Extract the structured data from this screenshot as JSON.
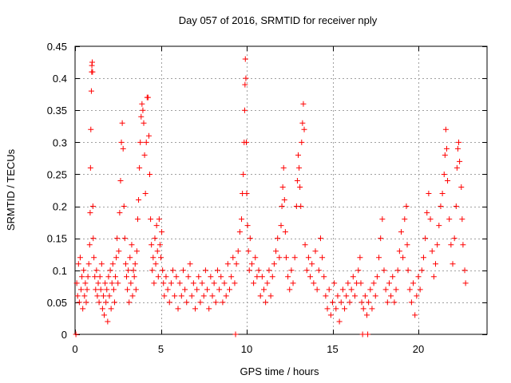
{
  "chart_data": {
    "type": "scatter",
    "title": "Day 057 of 2016, SRMTID for receiver nply",
    "xlabel": "GPS time / hours",
    "ylabel": "SRMTID / TECUs",
    "xlim": [
      0,
      24
    ],
    "ylim": [
      0,
      0.45
    ],
    "xticks": [
      "0",
      "5",
      "10",
      "15",
      "20"
    ],
    "xtick_values": [
      0,
      5,
      10,
      15,
      20
    ],
    "yticks": [
      "0",
      "0.05",
      "0.1",
      "0.15",
      "0.2",
      "0.25",
      "0.3",
      "0.35",
      "0.4",
      "0.45"
    ],
    "ytick_values": [
      0,
      0.05,
      0.1,
      0.15,
      0.2,
      0.25,
      0.3,
      0.35,
      0.4,
      0.45
    ],
    "grid": true,
    "legend": "none",
    "marker": "plus",
    "color": "#ff0000",
    "series": [
      {
        "points": [
          [
            0.05,
            0.0
          ],
          [
            0.1,
            0.08
          ],
          [
            0.15,
            0.06
          ],
          [
            0.2,
            0.11
          ],
          [
            0.25,
            0.05
          ],
          [
            0.3,
            0.12
          ],
          [
            0.35,
            0.07
          ],
          [
            0.4,
            0.09
          ],
          [
            0.45,
            0.04
          ],
          [
            0.5,
            0.1
          ],
          [
            0.55,
            0.06
          ],
          [
            0.6,
            0.08
          ],
          [
            0.65,
            0.05
          ],
          [
            0.7,
            0.07
          ],
          [
            0.75,
            0.09
          ],
          [
            0.8,
            0.11
          ],
          [
            0.85,
            0.14
          ],
          [
            0.88,
            0.19
          ],
          [
            0.9,
            0.26
          ],
          [
            0.92,
            0.32
          ],
          [
            0.95,
            0.38
          ],
          [
            0.97,
            0.41
          ],
          [
            0.98,
            0.42
          ],
          [
            1.0,
            0.425
          ],
          [
            1.02,
            0.41
          ],
          [
            1.04,
            0.2
          ],
          [
            1.06,
            0.15
          ],
          [
            1.1,
            0.12
          ],
          [
            1.15,
            0.09
          ],
          [
            1.2,
            0.07
          ],
          [
            1.25,
            0.1
          ],
          [
            1.3,
            0.06
          ],
          [
            1.35,
            0.08
          ],
          [
            1.4,
            0.05
          ],
          [
            1.45,
            0.09
          ],
          [
            1.5,
            0.07
          ],
          [
            1.55,
            0.11
          ],
          [
            1.6,
            0.04
          ],
          [
            1.65,
            0.06
          ],
          [
            1.7,
            0.03
          ],
          [
            1.75,
            0.08
          ],
          [
            1.8,
            0.05
          ],
          [
            1.85,
            0.07
          ],
          [
            1.9,
            0.02
          ],
          [
            1.95,
            0.09
          ],
          [
            2.0,
            0.06
          ],
          [
            2.05,
            0.1
          ],
          [
            2.1,
            0.04
          ],
          [
            2.15,
            0.08
          ],
          [
            2.2,
            0.11
          ],
          [
            2.25,
            0.07
          ],
          [
            2.3,
            0.05
          ],
          [
            2.35,
            0.09
          ],
          [
            2.4,
            0.12
          ],
          [
            2.45,
            0.15
          ],
          [
            2.5,
            0.08
          ],
          [
            2.55,
            0.13
          ],
          [
            2.6,
            0.19
          ],
          [
            2.65,
            0.24
          ],
          [
            2.7,
            0.3
          ],
          [
            2.75,
            0.33
          ],
          [
            2.8,
            0.29
          ],
          [
            2.85,
            0.2
          ],
          [
            2.9,
            0.15
          ],
          [
            2.95,
            0.11
          ],
          [
            3.0,
            0.09
          ],
          [
            3.05,
            0.07
          ],
          [
            3.1,
            0.1
          ],
          [
            3.15,
            0.05
          ],
          [
            3.2,
            0.12
          ],
          [
            3.25,
            0.08
          ],
          [
            3.3,
            0.14
          ],
          [
            3.35,
            0.06
          ],
          [
            3.4,
            0.1
          ],
          [
            3.45,
            0.09
          ],
          [
            3.5,
            0.11
          ],
          [
            3.55,
            0.07
          ],
          [
            3.6,
            0.13
          ],
          [
            3.65,
            0.18
          ],
          [
            3.7,
            0.21
          ],
          [
            3.75,
            0.26
          ],
          [
            3.8,
            0.3
          ],
          [
            3.85,
            0.34
          ],
          [
            3.9,
            0.36
          ],
          [
            3.95,
            0.35
          ],
          [
            4.0,
            0.33
          ],
          [
            4.05,
            0.28
          ],
          [
            4.1,
            0.22
          ],
          [
            4.15,
            0.3
          ],
          [
            4.2,
            0.37
          ],
          [
            4.25,
            0.37
          ],
          [
            4.3,
            0.31
          ],
          [
            4.35,
            0.25
          ],
          [
            4.4,
            0.18
          ],
          [
            4.45,
            0.14
          ],
          [
            4.5,
            0.1
          ],
          [
            4.55,
            0.12
          ],
          [
            4.6,
            0.08
          ],
          [
            4.65,
            0.15
          ],
          [
            4.7,
            0.11
          ],
          [
            4.75,
            0.17
          ],
          [
            4.8,
            0.13
          ],
          [
            4.85,
            0.09
          ],
          [
            4.9,
            0.18
          ],
          [
            4.95,
            0.14
          ],
          [
            5.0,
            0.12
          ],
          [
            5.05,
            0.16
          ],
          [
            5.1,
            0.1
          ],
          [
            5.15,
            0.08
          ],
          [
            5.2,
            0.06
          ],
          [
            5.3,
            0.09
          ],
          [
            5.4,
            0.07
          ],
          [
            5.5,
            0.05
          ],
          [
            5.6,
            0.08
          ],
          [
            5.7,
            0.1
          ],
          [
            5.8,
            0.06
          ],
          [
            5.9,
            0.09
          ],
          [
            6.0,
            0.04
          ],
          [
            6.1,
            0.08
          ],
          [
            6.2,
            0.06
          ],
          [
            6.3,
            0.1
          ],
          [
            6.4,
            0.07
          ],
          [
            6.5,
            0.05
          ],
          [
            6.6,
            0.09
          ],
          [
            6.7,
            0.11
          ],
          [
            6.8,
            0.06
          ],
          [
            6.9,
            0.08
          ],
          [
            7.0,
            0.04
          ],
          [
            7.1,
            0.07
          ],
          [
            7.2,
            0.09
          ],
          [
            7.3,
            0.05
          ],
          [
            7.4,
            0.08
          ],
          [
            7.5,
            0.06
          ],
          [
            7.6,
            0.1
          ],
          [
            7.7,
            0.07
          ],
          [
            7.8,
            0.04
          ],
          [
            7.9,
            0.09
          ],
          [
            8.0,
            0.06
          ],
          [
            8.1,
            0.08
          ],
          [
            8.2,
            0.05
          ],
          [
            8.3,
            0.1
          ],
          [
            8.4,
            0.07
          ],
          [
            8.5,
            0.09
          ],
          [
            8.6,
            0.05
          ],
          [
            8.7,
            0.08
          ],
          [
            8.8,
            0.06
          ],
          [
            8.9,
            0.11
          ],
          [
            9.0,
            0.07
          ],
          [
            9.1,
            0.09
          ],
          [
            9.2,
            0.12
          ],
          [
            9.3,
            0.08
          ],
          [
            9.35,
            0.0
          ],
          [
            9.4,
            0.11
          ],
          [
            9.5,
            0.13
          ],
          [
            9.6,
            0.16
          ],
          [
            9.7,
            0.18
          ],
          [
            9.75,
            0.22
          ],
          [
            9.8,
            0.25
          ],
          [
            9.85,
            0.3
          ],
          [
            9.88,
            0.35
          ],
          [
            9.9,
            0.39
          ],
          [
            9.92,
            0.43
          ],
          [
            9.95,
            0.4
          ],
          [
            9.98,
            0.3
          ],
          [
            10.0,
            0.22
          ],
          [
            10.05,
            0.17
          ],
          [
            10.1,
            0.13
          ],
          [
            10.15,
            0.1
          ],
          [
            10.2,
            0.15
          ],
          [
            10.3,
            0.11
          ],
          [
            10.4,
            0.08
          ],
          [
            10.5,
            0.12
          ],
          [
            10.6,
            0.09
          ],
          [
            10.7,
            0.1
          ],
          [
            10.8,
            0.06
          ],
          [
            10.9,
            0.09
          ],
          [
            11.0,
            0.07
          ],
          [
            11.1,
            0.05
          ],
          [
            11.2,
            0.08
          ],
          [
            11.3,
            0.1
          ],
          [
            11.4,
            0.06
          ],
          [
            11.5,
            0.09
          ],
          [
            11.6,
            0.11
          ],
          [
            11.7,
            0.13
          ],
          [
            11.8,
            0.15
          ],
          [
            11.9,
            0.12
          ],
          [
            12.0,
            0.17
          ],
          [
            12.05,
            0.2
          ],
          [
            12.1,
            0.23
          ],
          [
            12.15,
            0.26
          ],
          [
            12.2,
            0.21
          ],
          [
            12.25,
            0.16
          ],
          [
            12.3,
            0.12
          ],
          [
            12.4,
            0.09
          ],
          [
            12.5,
            0.07
          ],
          [
            12.6,
            0.1
          ],
          [
            12.7,
            0.08
          ],
          [
            12.8,
            0.12
          ],
          [
            12.9,
            0.2
          ],
          [
            12.95,
            0.24
          ],
          [
            13.0,
            0.28
          ],
          [
            13.05,
            0.26
          ],
          [
            13.1,
            0.23
          ],
          [
            13.15,
            0.2
          ],
          [
            13.2,
            0.3
          ],
          [
            13.25,
            0.33
          ],
          [
            13.3,
            0.36
          ],
          [
            13.35,
            0.32
          ],
          [
            13.4,
            0.14
          ],
          [
            13.5,
            0.1
          ],
          [
            13.6,
            0.12
          ],
          [
            13.7,
            0.09
          ],
          [
            13.8,
            0.11
          ],
          [
            13.9,
            0.08
          ],
          [
            14.0,
            0.13
          ],
          [
            14.1,
            0.07
          ],
          [
            14.2,
            0.1
          ],
          [
            14.3,
            0.15
          ],
          [
            14.4,
            0.12
          ],
          [
            14.5,
            0.09
          ],
          [
            14.6,
            0.06
          ],
          [
            14.7,
            0.04
          ],
          [
            14.8,
            0.07
          ],
          [
            14.9,
            0.03
          ],
          [
            15.0,
            0.05
          ],
          [
            15.1,
            0.08
          ],
          [
            15.2,
            0.04
          ],
          [
            15.3,
            0.06
          ],
          [
            15.4,
            0.02
          ],
          [
            15.5,
            0.05
          ],
          [
            15.6,
            0.07
          ],
          [
            15.7,
            0.04
          ],
          [
            15.8,
            0.06
          ],
          [
            15.9,
            0.08
          ],
          [
            16.0,
            0.05
          ],
          [
            16.1,
            0.07
          ],
          [
            16.2,
            0.09
          ],
          [
            16.3,
            0.06
          ],
          [
            16.4,
            0.08
          ],
          [
            16.5,
            0.1
          ],
          [
            16.6,
            0.12
          ],
          [
            16.65,
            0.08
          ],
          [
            16.7,
            0.05
          ],
          [
            16.75,
            0.0
          ],
          [
            16.8,
            0.04
          ],
          [
            16.9,
            0.06
          ],
          [
            17.0,
            0.03
          ],
          [
            17.05,
            0.0
          ],
          [
            17.1,
            0.05
          ],
          [
            17.2,
            0.07
          ],
          [
            17.3,
            0.04
          ],
          [
            17.4,
            0.08
          ],
          [
            17.5,
            0.06
          ],
          [
            17.6,
            0.09
          ],
          [
            17.7,
            0.12
          ],
          [
            17.8,
            0.15
          ],
          [
            17.9,
            0.18
          ],
          [
            18.0,
            0.1
          ],
          [
            18.1,
            0.07
          ],
          [
            18.2,
            0.05
          ],
          [
            18.3,
            0.08
          ],
          [
            18.4,
            0.06
          ],
          [
            18.5,
            0.09
          ],
          [
            18.6,
            0.05
          ],
          [
            18.7,
            0.07
          ],
          [
            18.8,
            0.1
          ],
          [
            18.9,
            0.13
          ],
          [
            19.0,
            0.16
          ],
          [
            19.1,
            0.12
          ],
          [
            19.2,
            0.18
          ],
          [
            19.3,
            0.2
          ],
          [
            19.35,
            0.14
          ],
          [
            19.4,
            0.1
          ],
          [
            19.5,
            0.07
          ],
          [
            19.6,
            0.05
          ],
          [
            19.7,
            0.08
          ],
          [
            19.8,
            0.03
          ],
          [
            19.9,
            0.06
          ],
          [
            20.0,
            0.09
          ],
          [
            20.1,
            0.07
          ],
          [
            20.2,
            0.1
          ],
          [
            20.3,
            0.12
          ],
          [
            20.4,
            0.15
          ],
          [
            20.5,
            0.19
          ],
          [
            20.6,
            0.22
          ],
          [
            20.7,
            0.18
          ],
          [
            20.8,
            0.13
          ],
          [
            20.9,
            0.09
          ],
          [
            21.0,
            0.11
          ],
          [
            21.1,
            0.14
          ],
          [
            21.2,
            0.17
          ],
          [
            21.3,
            0.2
          ],
          [
            21.4,
            0.22
          ],
          [
            21.5,
            0.25
          ],
          [
            21.55,
            0.28
          ],
          [
            21.6,
            0.32
          ],
          [
            21.65,
            0.29
          ],
          [
            21.7,
            0.24
          ],
          [
            21.8,
            0.18
          ],
          [
            21.9,
            0.14
          ],
          [
            22.0,
            0.11
          ],
          [
            22.1,
            0.15
          ],
          [
            22.2,
            0.2
          ],
          [
            22.25,
            0.26
          ],
          [
            22.3,
            0.29
          ],
          [
            22.35,
            0.3
          ],
          [
            22.4,
            0.27
          ],
          [
            22.5,
            0.23
          ],
          [
            22.55,
            0.18
          ],
          [
            22.6,
            0.14
          ],
          [
            22.7,
            0.1
          ],
          [
            22.75,
            0.08
          ]
        ]
      }
    ]
  }
}
